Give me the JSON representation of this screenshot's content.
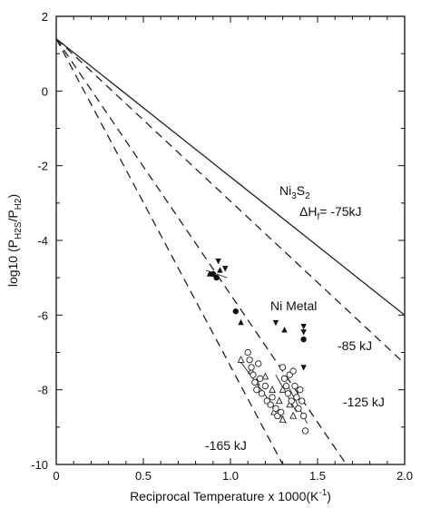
{
  "chart_data": {
    "type": "line",
    "xlabel_main": "Reciprocal Temperature x 1000(K",
    "xlabel_sup": "-1",
    "xlabel_end": ")",
    "ylabel_main": "log10 (P",
    "ylabel_sub1": "H2S",
    "ylabel_mid": "/P",
    "ylabel_sub2": "H2",
    "ylabel_end": ")",
    "xlim": [
      0,
      2.0
    ],
    "ylim": [
      -10,
      2
    ],
    "x_ticks": [
      0,
      0.5,
      1.0,
      1.5,
      2.0
    ],
    "x_tick_labels": [
      "0",
      "0.5",
      "1.0",
      "1.5",
      "2.0"
    ],
    "y_ticks": [
      2,
      0,
      -2,
      -4,
      -6,
      -8,
      -10
    ],
    "y_tick_labels": [
      "2",
      "0",
      "-2",
      "-4",
      "-6",
      "-8",
      "-10"
    ],
    "lines": [
      {
        "label": "-75kJ",
        "style": "solid",
        "x": [
          0,
          2.0
        ],
        "y": [
          1.4,
          -6.0
        ]
      },
      {
        "label": "-85 kJ",
        "style": "dashed",
        "x": [
          0,
          2.0
        ],
        "y": [
          1.4,
          -7.3
        ]
      },
      {
        "label": "-125 kJ",
        "style": "dashed",
        "x": [
          0,
          1.665
        ],
        "y": [
          1.4,
          -10
        ]
      },
      {
        "label": "-165 kJ",
        "style": "dashed",
        "x": [
          0,
          1.3
        ],
        "y": [
          1.4,
          -10
        ]
      }
    ],
    "fit_segments": [
      {
        "x": [
          0.86,
          0.98
        ],
        "y": [
          -4.8,
          -5.0
        ]
      },
      {
        "x": [
          1.05,
          1.32
        ],
        "y": [
          -7.2,
          -8.9
        ]
      },
      {
        "x": [
          1.26,
          1.38
        ],
        "y": [
          -7.6,
          -8.6
        ]
      },
      {
        "x": [
          1.32,
          1.44
        ],
        "y": [
          -7.8,
          -8.9
        ]
      }
    ],
    "series": [
      {
        "marker": "filled-triangle-down",
        "points": [
          [
            0.93,
            -4.55
          ],
          [
            0.97,
            -4.75
          ],
          [
            1.26,
            -6.2
          ],
          [
            1.42,
            -6.3
          ],
          [
            1.42,
            -6.45
          ],
          [
            1.42,
            -7.4
          ]
        ]
      },
      {
        "marker": "filled-triangle",
        "points": [
          [
            0.88,
            -4.9
          ],
          [
            0.94,
            -4.8
          ],
          [
            1.06,
            -6.2
          ],
          [
            1.31,
            -6.4
          ]
        ]
      },
      {
        "marker": "filled-circle",
        "points": [
          [
            0.9,
            -4.9
          ],
          [
            0.92,
            -5.0
          ],
          [
            1.03,
            -5.9
          ],
          [
            1.42,
            -6.65
          ]
        ]
      },
      {
        "marker": "open-triangle",
        "points": [
          [
            1.06,
            -7.2
          ],
          [
            1.12,
            -7.5
          ],
          [
            1.15,
            -7.8
          ],
          [
            1.2,
            -7.65
          ],
          [
            1.24,
            -8.0
          ],
          [
            1.28,
            -8.3
          ],
          [
            1.3,
            -8.0
          ],
          [
            1.34,
            -8.4
          ],
          [
            1.36,
            -8.7
          ],
          [
            1.25,
            -8.6
          ],
          [
            1.3,
            -8.8
          ]
        ]
      },
      {
        "marker": "open-circle",
        "points": [
          [
            1.1,
            -7.0
          ],
          [
            1.11,
            -7.2
          ],
          [
            1.12,
            -7.4
          ],
          [
            1.13,
            -7.6
          ],
          [
            1.14,
            -7.8
          ],
          [
            1.15,
            -8.0
          ],
          [
            1.16,
            -7.3
          ],
          [
            1.17,
            -7.7
          ],
          [
            1.18,
            -8.1
          ],
          [
            1.2,
            -7.9
          ],
          [
            1.21,
            -8.3
          ],
          [
            1.23,
            -8.4
          ],
          [
            1.24,
            -8.2
          ],
          [
            1.26,
            -8.5
          ],
          [
            1.27,
            -8.7
          ],
          [
            1.29,
            -8.6
          ],
          [
            1.3,
            -7.4
          ],
          [
            1.31,
            -7.7
          ],
          [
            1.32,
            -7.9
          ],
          [
            1.33,
            -8.1
          ],
          [
            1.34,
            -7.6
          ],
          [
            1.35,
            -8.3
          ],
          [
            1.36,
            -7.5
          ],
          [
            1.37,
            -7.9
          ],
          [
            1.38,
            -8.2
          ],
          [
            1.39,
            -8.5
          ],
          [
            1.4,
            -8.0
          ],
          [
            1.41,
            -8.3
          ],
          [
            1.42,
            -8.7
          ],
          [
            1.43,
            -9.1
          ]
        ]
      }
    ],
    "annotations": {
      "ni3s2_main": "Ni",
      "ni3s2_sub1": "3",
      "ni3s2_mid": "S",
      "ni3s2_sub2": "2",
      "dh_main": "ΔH",
      "dh_sub": "f",
      "dh_value": "= -75kJ",
      "ni_metal": "Ni Metal",
      "kj85": "-85 kJ",
      "kj125": "-125 kJ",
      "kj165": "-165 kJ"
    },
    "grid": false
  }
}
